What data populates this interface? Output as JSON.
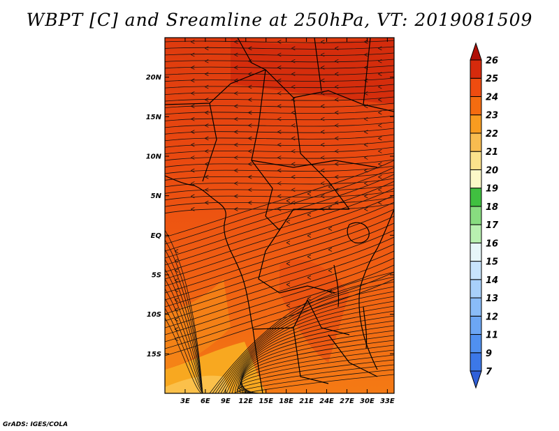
{
  "title": "WBPT [C] and Sreamline at 250hPa, VT: 2019081509",
  "credit": "GrADS: IGES/COLA",
  "map": {
    "lon_range": [
      0,
      34
    ],
    "lat_range": [
      -20,
      25
    ],
    "lon_ticks": [
      {
        "value": 3,
        "label": "3E"
      },
      {
        "value": 6,
        "label": "6E"
      },
      {
        "value": 9,
        "label": "9E"
      },
      {
        "value": 12,
        "label": "12E"
      },
      {
        "value": 15,
        "label": "15E"
      },
      {
        "value": 18,
        "label": "18E"
      },
      {
        "value": 21,
        "label": "21E"
      },
      {
        "value": 24,
        "label": "24E"
      },
      {
        "value": 27,
        "label": "27E"
      },
      {
        "value": 30,
        "label": "30E"
      },
      {
        "value": 33,
        "label": "33E"
      }
    ],
    "lat_ticks": [
      {
        "value": 20,
        "label": "20N"
      },
      {
        "value": 15,
        "label": "15N"
      },
      {
        "value": 10,
        "label": "10N"
      },
      {
        "value": 5,
        "label": "5N"
      },
      {
        "value": 0,
        "label": "EQ"
      },
      {
        "value": -5,
        "label": "5S"
      },
      {
        "value": -10,
        "label": "10S"
      },
      {
        "value": -15,
        "label": "15S"
      }
    ]
  },
  "colorbar": {
    "levels": [
      {
        "label": "",
        "color": "#3060d8"
      },
      {
        "label": "7",
        "color": "#3c78e8"
      },
      {
        "label": "9",
        "color": "#5090f0"
      },
      {
        "label": "11",
        "color": "#6ca6f4"
      },
      {
        "label": "12",
        "color": "#8abcf8"
      },
      {
        "label": "13",
        "color": "#a8d0fa"
      },
      {
        "label": "14",
        "color": "#c8e4fc"
      },
      {
        "label": "15",
        "color": "#e6f6f8"
      },
      {
        "label": "16",
        "color": "#b8f0b0"
      },
      {
        "label": "17",
        "color": "#88dc80"
      },
      {
        "label": "18",
        "color": "#40c040"
      },
      {
        "label": "19",
        "color": "#fcf8c8"
      },
      {
        "label": "20",
        "color": "#fce28c"
      },
      {
        "label": "21",
        "color": "#f8bc50"
      },
      {
        "label": "22",
        "color": "#f89c20"
      },
      {
        "label": "23",
        "color": "#f46c10"
      },
      {
        "label": "24",
        "color": "#ee4c10"
      },
      {
        "label": "25",
        "color": "#d62a0c"
      },
      {
        "label": "26",
        "color": "#b01008"
      }
    ]
  }
}
